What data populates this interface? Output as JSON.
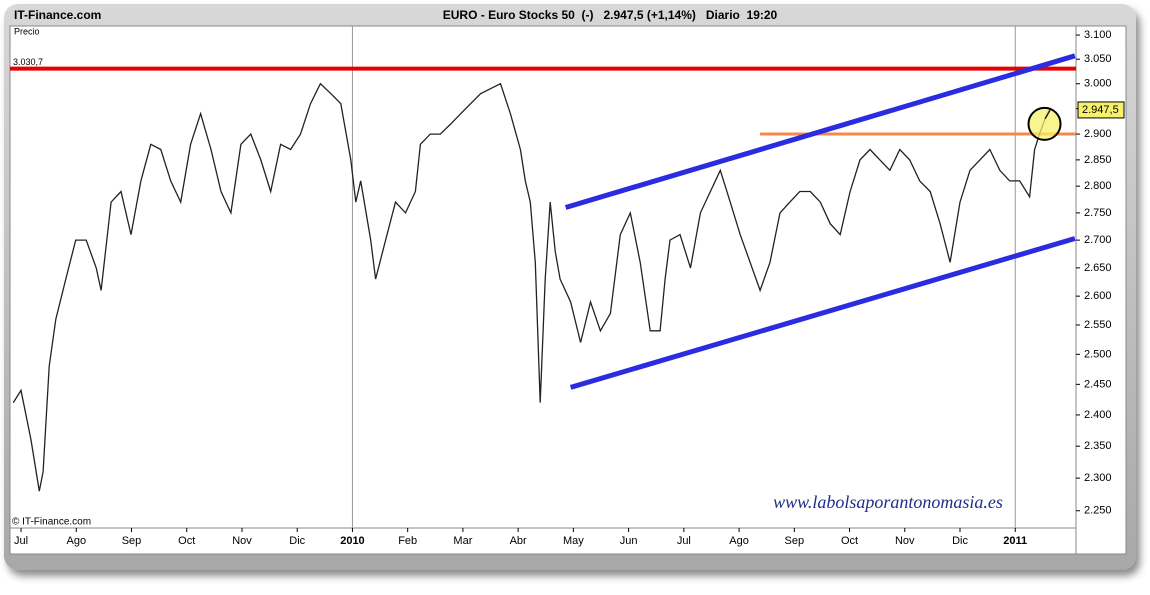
{
  "chart_data": {
    "type": "line",
    "site": "IT-Finance.com",
    "title": "EURO - Euro Stocks 50  (-)   2.947,5 (+1,14%)   Diario  19:20",
    "y_label": "Precio",
    "copyright": "© IT-Finance.com",
    "watermark": "www.labolsaporantonomasia.es",
    "log_y": true,
    "series": [
      {
        "color": "#222222",
        "x": [
          -0.14,
          0,
          0.18,
          0.33,
          0.4,
          0.51,
          0.63,
          0.81,
          0.99,
          1.18,
          1.36,
          1.45,
          1.63,
          1.81,
          1.99,
          2.17,
          2.35,
          2.53,
          2.71,
          2.89,
          3.07,
          3.25,
          3.44,
          3.62,
          3.8,
          3.98,
          4.16,
          4.34,
          4.52,
          4.7,
          4.88,
          5.06,
          5.24,
          5.42,
          5.61,
          5.79,
          5.97,
          6.06,
          6.15,
          6.33,
          6.42,
          6.6,
          6.78,
          6.96,
          7.14,
          7.23,
          7.41,
          7.59,
          7.78,
          7.96,
          8.14,
          8.32,
          8.5,
          8.68,
          8.86,
          9.04,
          9.13,
          9.22,
          9.31,
          9.4,
          9.49,
          9.58,
          9.67,
          9.76,
          9.95,
          10.13,
          10.31,
          10.49,
          10.67,
          10.85,
          11.03,
          11.21,
          11.39,
          11.57,
          11.66,
          11.75,
          11.93,
          12.12,
          12.3,
          12.48,
          12.66,
          12.84,
          13.02,
          13.2,
          13.38,
          13.56,
          13.74,
          13.92,
          14.1,
          14.29,
          14.47,
          14.65,
          14.83,
          15.01,
          15.19,
          15.37,
          15.55,
          15.73,
          15.91,
          16.09,
          16.27,
          16.46,
          16.64,
          16.82,
          17.0,
          17.18,
          17.36,
          17.54,
          17.72,
          17.9,
          18.08,
          18.26,
          18.35,
          18.44,
          18.54,
          18.63
        ],
        "values": [
          2420,
          2440,
          2360,
          2280,
          2310,
          2480,
          2560,
          2630,
          2700,
          2700,
          2650,
          2610,
          2770,
          2790,
          2710,
          2810,
          2880,
          2870,
          2810,
          2770,
          2880,
          2940,
          2870,
          2790,
          2750,
          2880,
          2900,
          2850,
          2790,
          2880,
          2870,
          2900,
          2960,
          3000,
          2980,
          2960,
          2850,
          2770,
          2810,
          2700,
          2630,
          2700,
          2770,
          2750,
          2790,
          2880,
          2900,
          2900,
          2920,
          2940,
          2960,
          2980,
          2990,
          3000,
          2940,
          2870,
          2810,
          2770,
          2660,
          2420,
          2630,
          2770,
          2680,
          2630,
          2590,
          2520,
          2590,
          2540,
          2570,
          2710,
          2750,
          2660,
          2540,
          2540,
          2630,
          2700,
          2710,
          2650,
          2750,
          2790,
          2830,
          2770,
          2710,
          2660,
          2610,
          2660,
          2750,
          2770,
          2790,
          2790,
          2770,
          2730,
          2710,
          2790,
          2850,
          2870,
          2850,
          2830,
          2870,
          2850,
          2810,
          2790,
          2730,
          2660,
          2770,
          2830,
          2850,
          2870,
          2830,
          2810,
          2810,
          2780,
          2870,
          2900,
          2930,
          2947.5
        ]
      }
    ],
    "xlim": [
      -0.2,
      19.1
    ],
    "xticks": [
      {
        "value": 0,
        "label": "Jul"
      },
      {
        "value": 1,
        "label": "Ago"
      },
      {
        "value": 2,
        "label": "Sep"
      },
      {
        "value": 3,
        "label": "Oct"
      },
      {
        "value": 4,
        "label": "Nov"
      },
      {
        "value": 5,
        "label": "Dic"
      },
      {
        "value": 6,
        "label": "2010"
      },
      {
        "value": 7,
        "label": "Feb"
      },
      {
        "value": 8,
        "label": "Mar"
      },
      {
        "value": 9,
        "label": "Abr"
      },
      {
        "value": 10,
        "label": "May"
      },
      {
        "value": 11,
        "label": "Jun"
      },
      {
        "value": 12,
        "label": "Jul"
      },
      {
        "value": 13,
        "label": "Ago"
      },
      {
        "value": 14,
        "label": "Sep"
      },
      {
        "value": 15,
        "label": "Oct"
      },
      {
        "value": 16,
        "label": "Nov"
      },
      {
        "value": 17,
        "label": "Dic"
      },
      {
        "value": 18,
        "label": "2011"
      }
    ],
    "vgrid": [
      6,
      18
    ],
    "ylim": [
      2224,
      3119
    ],
    "yticks": [
      {
        "value": 3100,
        "label": "3.100"
      },
      {
        "value": 3050,
        "label": "3.050"
      },
      {
        "value": 3000,
        "label": "3.000"
      },
      {
        "value": 2950,
        "label": "2.950"
      },
      {
        "value": 2900,
        "label": "2.900"
      },
      {
        "value": 2850,
        "label": "2.850"
      },
      {
        "value": 2800,
        "label": "2.800"
      },
      {
        "value": 2750,
        "label": "2.750"
      },
      {
        "value": 2700,
        "label": "2.700"
      },
      {
        "value": 2650,
        "label": "2.650"
      },
      {
        "value": 2600,
        "label": "2.600"
      },
      {
        "value": 2550,
        "label": "2.550"
      },
      {
        "value": 2500,
        "label": "2.500"
      },
      {
        "value": 2450,
        "label": "2.450"
      },
      {
        "value": 2400,
        "label": "2.400"
      },
      {
        "value": 2350,
        "label": "2.350"
      },
      {
        "value": 2300,
        "label": "2.300"
      },
      {
        "value": 2250,
        "label": "2.250"
      }
    ],
    "last_price": {
      "value": 2947.5,
      "label": "2.947,5"
    },
    "hlines": [
      {
        "value": 3030.7,
        "label": "3.030,7",
        "color": "#e60000"
      },
      {
        "value": 2900,
        "x": [
          13.38,
          19.1
        ],
        "color": "#f5894c"
      }
    ],
    "trendlines": [
      {
        "x": [
          9.86,
          19.08
        ],
        "y": [
          2760,
          3057
        ],
        "color": "#2b2be0"
      },
      {
        "x": [
          9.95,
          19.08
        ],
        "y": [
          2445,
          2703
        ],
        "color": "#2b2be0"
      }
    ],
    "highlight": {
      "x": 18.53,
      "y": 2920,
      "color": "#f6f06a"
    }
  }
}
